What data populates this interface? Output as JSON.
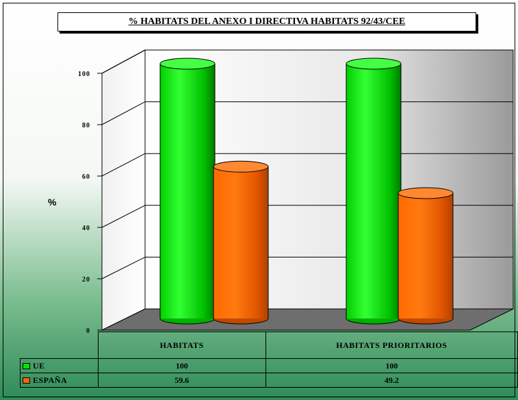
{
  "chart_data": {
    "type": "bar",
    "title": "% HABITATS DEL ANEXO I DIRECTIVA HABITATS 92/43/CEE",
    "ylabel": "%",
    "ylim": [
      0,
      100
    ],
    "yticks": [
      "0",
      "20",
      "40",
      "60",
      "80",
      "100"
    ],
    "categories": [
      "HABITATS",
      "HABITATS PRIORITARIOS"
    ],
    "series": [
      {
        "name": "UE",
        "values": [
          100,
          100
        ],
        "display": [
          "100",
          "100"
        ],
        "color": "#00e600"
      },
      {
        "name": "ESPAÑA",
        "values": [
          59.6,
          49.2
        ],
        "display": [
          "59.6",
          "49.2"
        ],
        "color": "#ff6600"
      }
    ],
    "grid": true,
    "legend": "data-table"
  }
}
